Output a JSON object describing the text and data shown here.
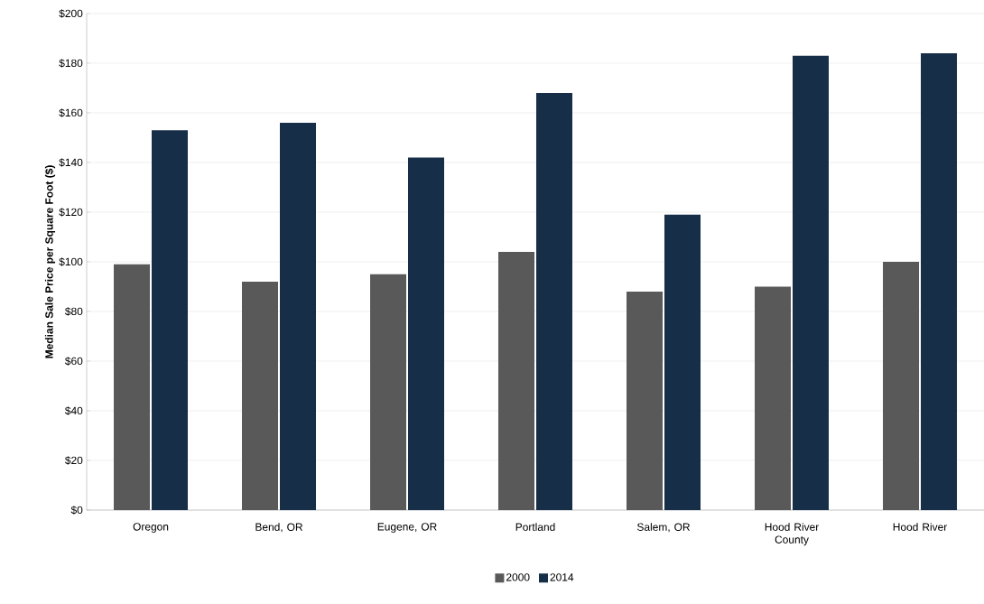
{
  "chart_data": {
    "type": "bar",
    "ylabel": "Median  Sale Price per Square Foot ($)",
    "categories": [
      "Oregon",
      "Bend, OR",
      "Eugene, OR",
      "Portland",
      "Salem, OR",
      "Hood River County",
      "Hood River"
    ],
    "series": [
      {
        "name": "2000",
        "color": "#595959",
        "values": [
          99,
          92,
          95,
          104,
          88,
          90,
          100
        ]
      },
      {
        "name": "2014",
        "color": "#172e48",
        "values": [
          153,
          156,
          142,
          168,
          119,
          183,
          184
        ]
      }
    ],
    "ylim": [
      0,
      200
    ],
    "yticks": [
      {
        "value": 0,
        "label": "$0"
      },
      {
        "value": 20,
        "label": "$20"
      },
      {
        "value": 40,
        "label": "$40"
      },
      {
        "value": 60,
        "label": "$60"
      },
      {
        "value": 80,
        "label": "$80"
      },
      {
        "value": 100,
        "label": "$100"
      },
      {
        "value": 120,
        "label": "$120"
      },
      {
        "value": 140,
        "label": "$140"
      },
      {
        "value": 160,
        "label": "$160"
      },
      {
        "value": 180,
        "label": "$180"
      },
      {
        "value": 200,
        "label": "$200"
      }
    ],
    "grid": "y",
    "legend": "bottom"
  }
}
